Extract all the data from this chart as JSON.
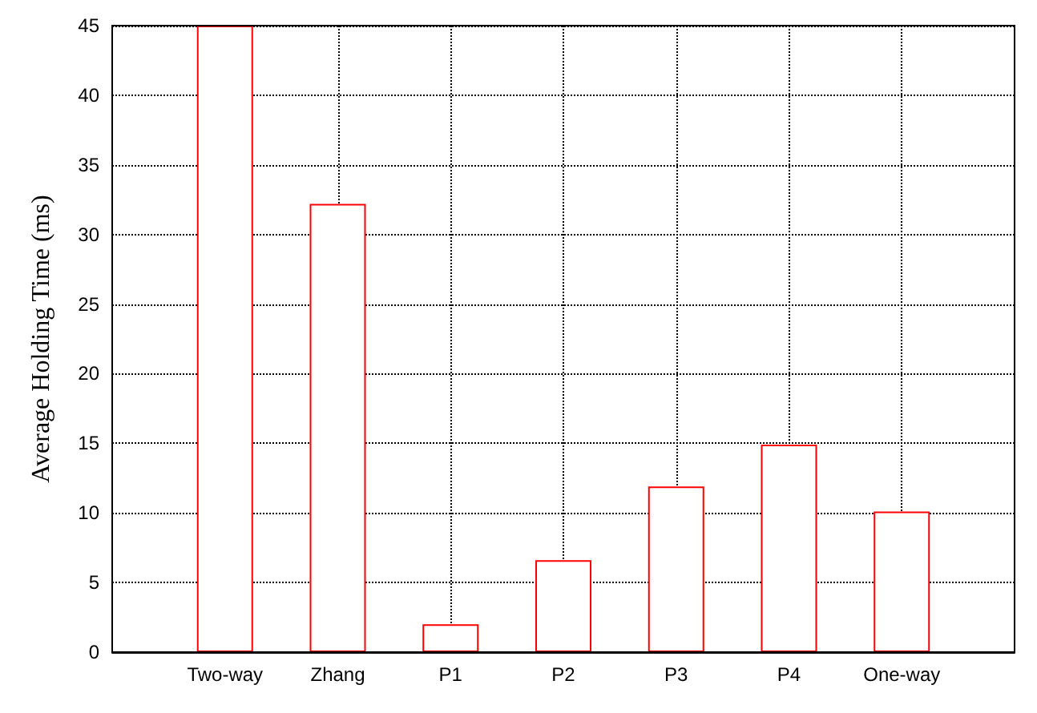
{
  "chart_data": {
    "type": "bar",
    "ylabel": "Average Holding Time (ms)",
    "categories": [
      "Two-way",
      "Zhang",
      "P1",
      "P2",
      "P3",
      "P4",
      "One-way"
    ],
    "values": [
      45,
      32.2,
      2,
      6.6,
      11.9,
      14.9,
      10.1
    ],
    "color": "#ff0000",
    "ylim": [
      0,
      45
    ],
    "yticks": [
      0,
      5,
      10,
      15,
      20,
      25,
      30,
      35,
      40,
      45
    ],
    "grid": true
  }
}
